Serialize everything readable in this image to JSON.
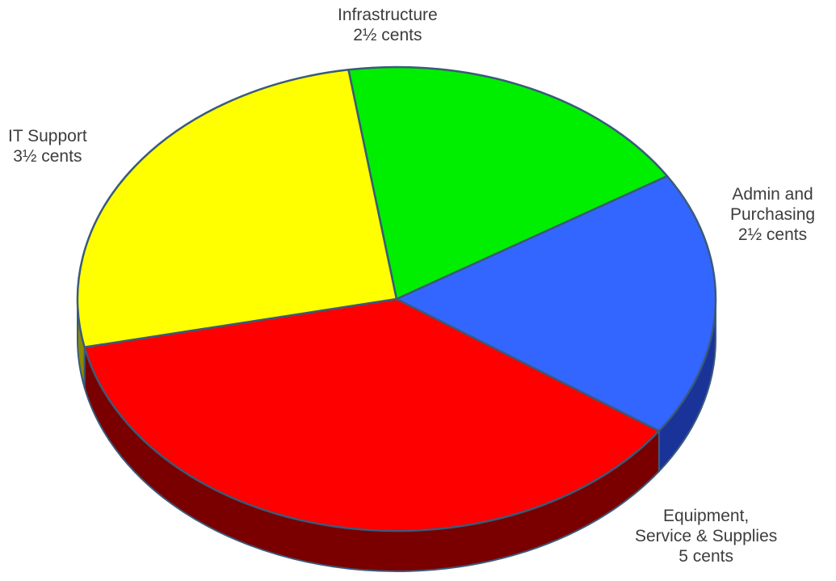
{
  "chart_data": {
    "type": "pie",
    "style": "3d",
    "slices": [
      {
        "key": "admin",
        "lines": [
          "Admin and",
          "Purchasing",
          "2½ cents"
        ],
        "value": 2.5,
        "color": "#3366ff",
        "side_color": "#1a3399"
      },
      {
        "key": "equipment",
        "lines": [
          "Equipment,",
          "Service & Supplies",
          "5 cents"
        ],
        "value": 5,
        "color": "#ff0000",
        "side_color": "#7a0000"
      },
      {
        "key": "it_support",
        "lines": [
          "IT Support",
          "3½ cents"
        ],
        "value": 3.5,
        "color": "#ffff00",
        "side_color": "#8a8a00"
      },
      {
        "key": "infrastructure",
        "lines": [
          "Infrastructure",
          "2½ cents"
        ],
        "value": 2.5,
        "color": "#00ee00",
        "side_color": "#007a00"
      }
    ],
    "border_color": "#3a5a7a"
  }
}
